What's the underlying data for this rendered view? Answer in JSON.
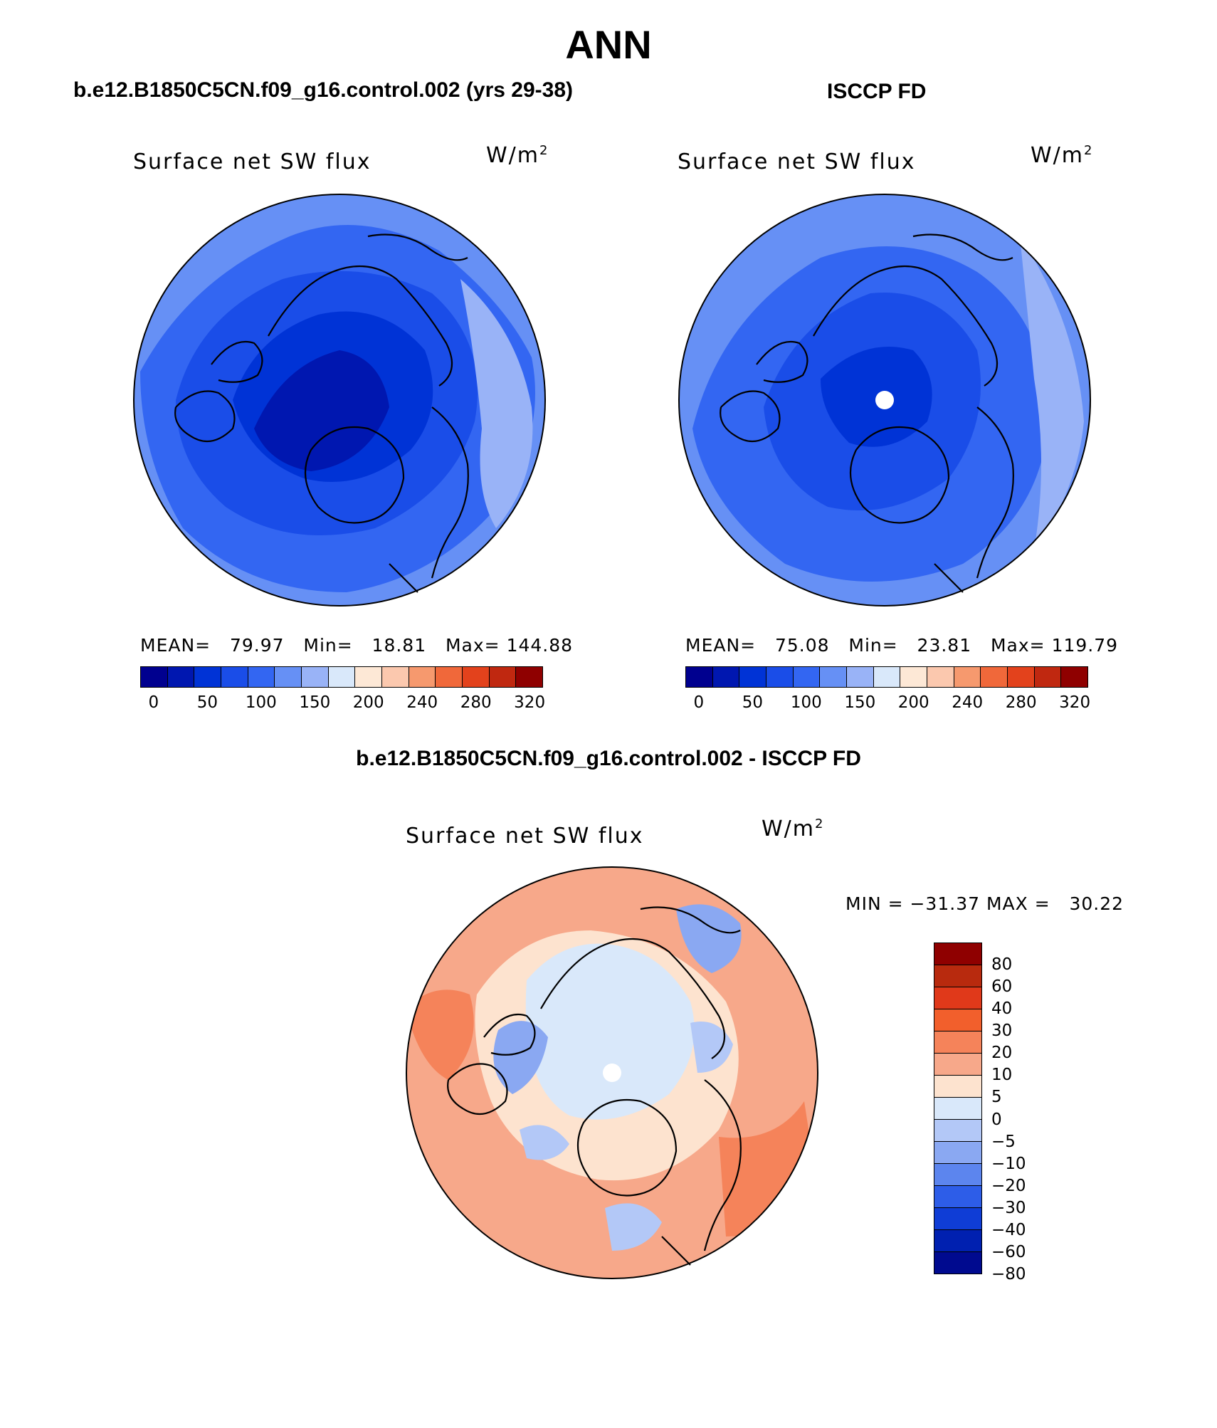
{
  "page_title": "ANN",
  "panels": [
    {
      "subtitle": "b.e12.B1850C5CN.f09_g16.control.002 (yrs 29-38)",
      "map_title": "Surface net SW flux",
      "units_base": "W/m",
      "units_exp": "2",
      "stats": {
        "mean_label": "MEAN=",
        "mean": "79.97",
        "min_label": "Min=",
        "min": "18.81",
        "max_label": "Max=",
        "max": "144.88"
      },
      "colorbar": {
        "colors": [
          "#00008f",
          "#0017b0",
          "#0033d6",
          "#1a4de8",
          "#3366f2",
          "#6690f5",
          "#99b3f7",
          "#d9e8fa",
          "#fde8d6",
          "#fbc8ae",
          "#f6996e",
          "#f0683a",
          "#e3421c",
          "#c02810",
          "#8f0000"
        ],
        "tick_labels": [
          "0",
          "50",
          "100",
          "150",
          "200",
          "240",
          "280",
          "320"
        ]
      },
      "map": {
        "projection": "north-polar-stereographic",
        "field": "model",
        "missing_pole": false
      }
    },
    {
      "subtitle": "ISCCP FD",
      "map_title": "Surface net SW flux",
      "units_base": "W/m",
      "units_exp": "2",
      "stats": {
        "mean_label": "MEAN=",
        "mean": "75.08",
        "min_label": "Min=",
        "min": "23.81",
        "max_label": "Max=",
        "max": "119.79"
      },
      "colorbar": {
        "colors": [
          "#00008f",
          "#0017b0",
          "#0033d6",
          "#1a4de8",
          "#3366f2",
          "#6690f5",
          "#99b3f7",
          "#d9e8fa",
          "#fde8d6",
          "#fbc8ae",
          "#f6996e",
          "#f0683a",
          "#e3421c",
          "#c02810",
          "#8f0000"
        ],
        "tick_labels": [
          "0",
          "50",
          "100",
          "150",
          "200",
          "240",
          "280",
          "320"
        ]
      },
      "map": {
        "projection": "north-polar-stereographic",
        "field": "observations",
        "missing_pole": true
      }
    }
  ],
  "difference": {
    "subtitle": "b.e12.B1850C5CN.f09_g16.control.002 - ISCCP FD",
    "map_title": "Surface net SW flux",
    "units_base": "W/m",
    "units_exp": "2",
    "minmax": "MIN = −31.37 MAX =   30.22",
    "colorbar": {
      "colors_top_to_bottom": [
        "#8f0000",
        "#b82a0e",
        "#e0391a",
        "#f25f2c",
        "#f5835a",
        "#f7a88a",
        "#fde3cf",
        "#d9e8fa",
        "#b3c8f7",
        "#8aa8f2",
        "#5c85ee",
        "#2d5de8",
        "#0f3dd6",
        "#0020b0",
        "#000a8f"
      ],
      "tick_labels_top_to_bottom": [
        "80",
        "60",
        "40",
        "30",
        "20",
        "10",
        "5",
        "0",
        "−5",
        "−10",
        "−20",
        "−30",
        "−40",
        "−60",
        "−80"
      ]
    },
    "map": {
      "projection": "north-polar-stereographic",
      "field": "model minus observations",
      "missing_pole": true
    }
  }
}
